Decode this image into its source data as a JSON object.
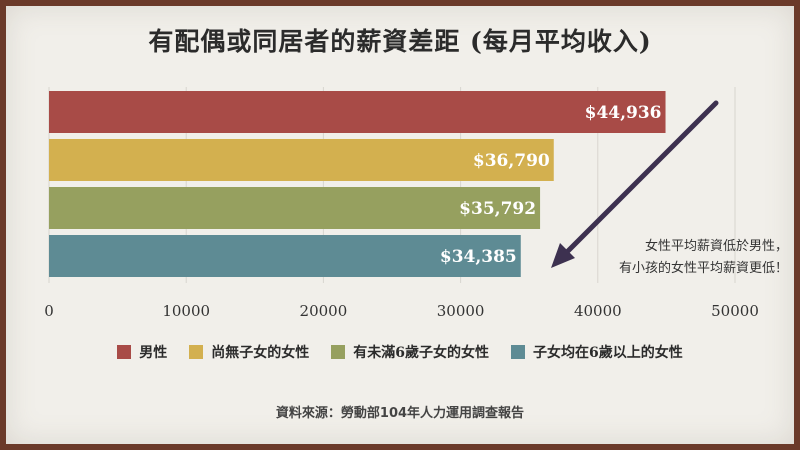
{
  "chart_data": {
    "type": "bar",
    "orientation": "horizontal",
    "title": "有配偶或同居者的薪資差距 (每月平均收入)",
    "categories": [
      "男性",
      "尚無子女的女性",
      "有未滿6歲子女的女性",
      "子女均在6歲以上的女性"
    ],
    "values": [
      44936,
      36790,
      35792,
      34385
    ],
    "data_labels": [
      "$44,936",
      "$36,790",
      "$35,792",
      "$34,385"
    ],
    "colors": [
      "#a84b47",
      "#d3b04f",
      "#96a05f",
      "#5e8b94"
    ],
    "xlim": [
      0,
      50000
    ],
    "xticks": [
      0,
      10000,
      20000,
      30000,
      40000,
      50000
    ],
    "grid": true,
    "legend_position": "bottom",
    "annotation": [
      "女性平均薪資低於男性，",
      "有小孩的女性平均薪資更低！"
    ]
  },
  "source": "資料來源：勞動部104年人力運用調查報告"
}
